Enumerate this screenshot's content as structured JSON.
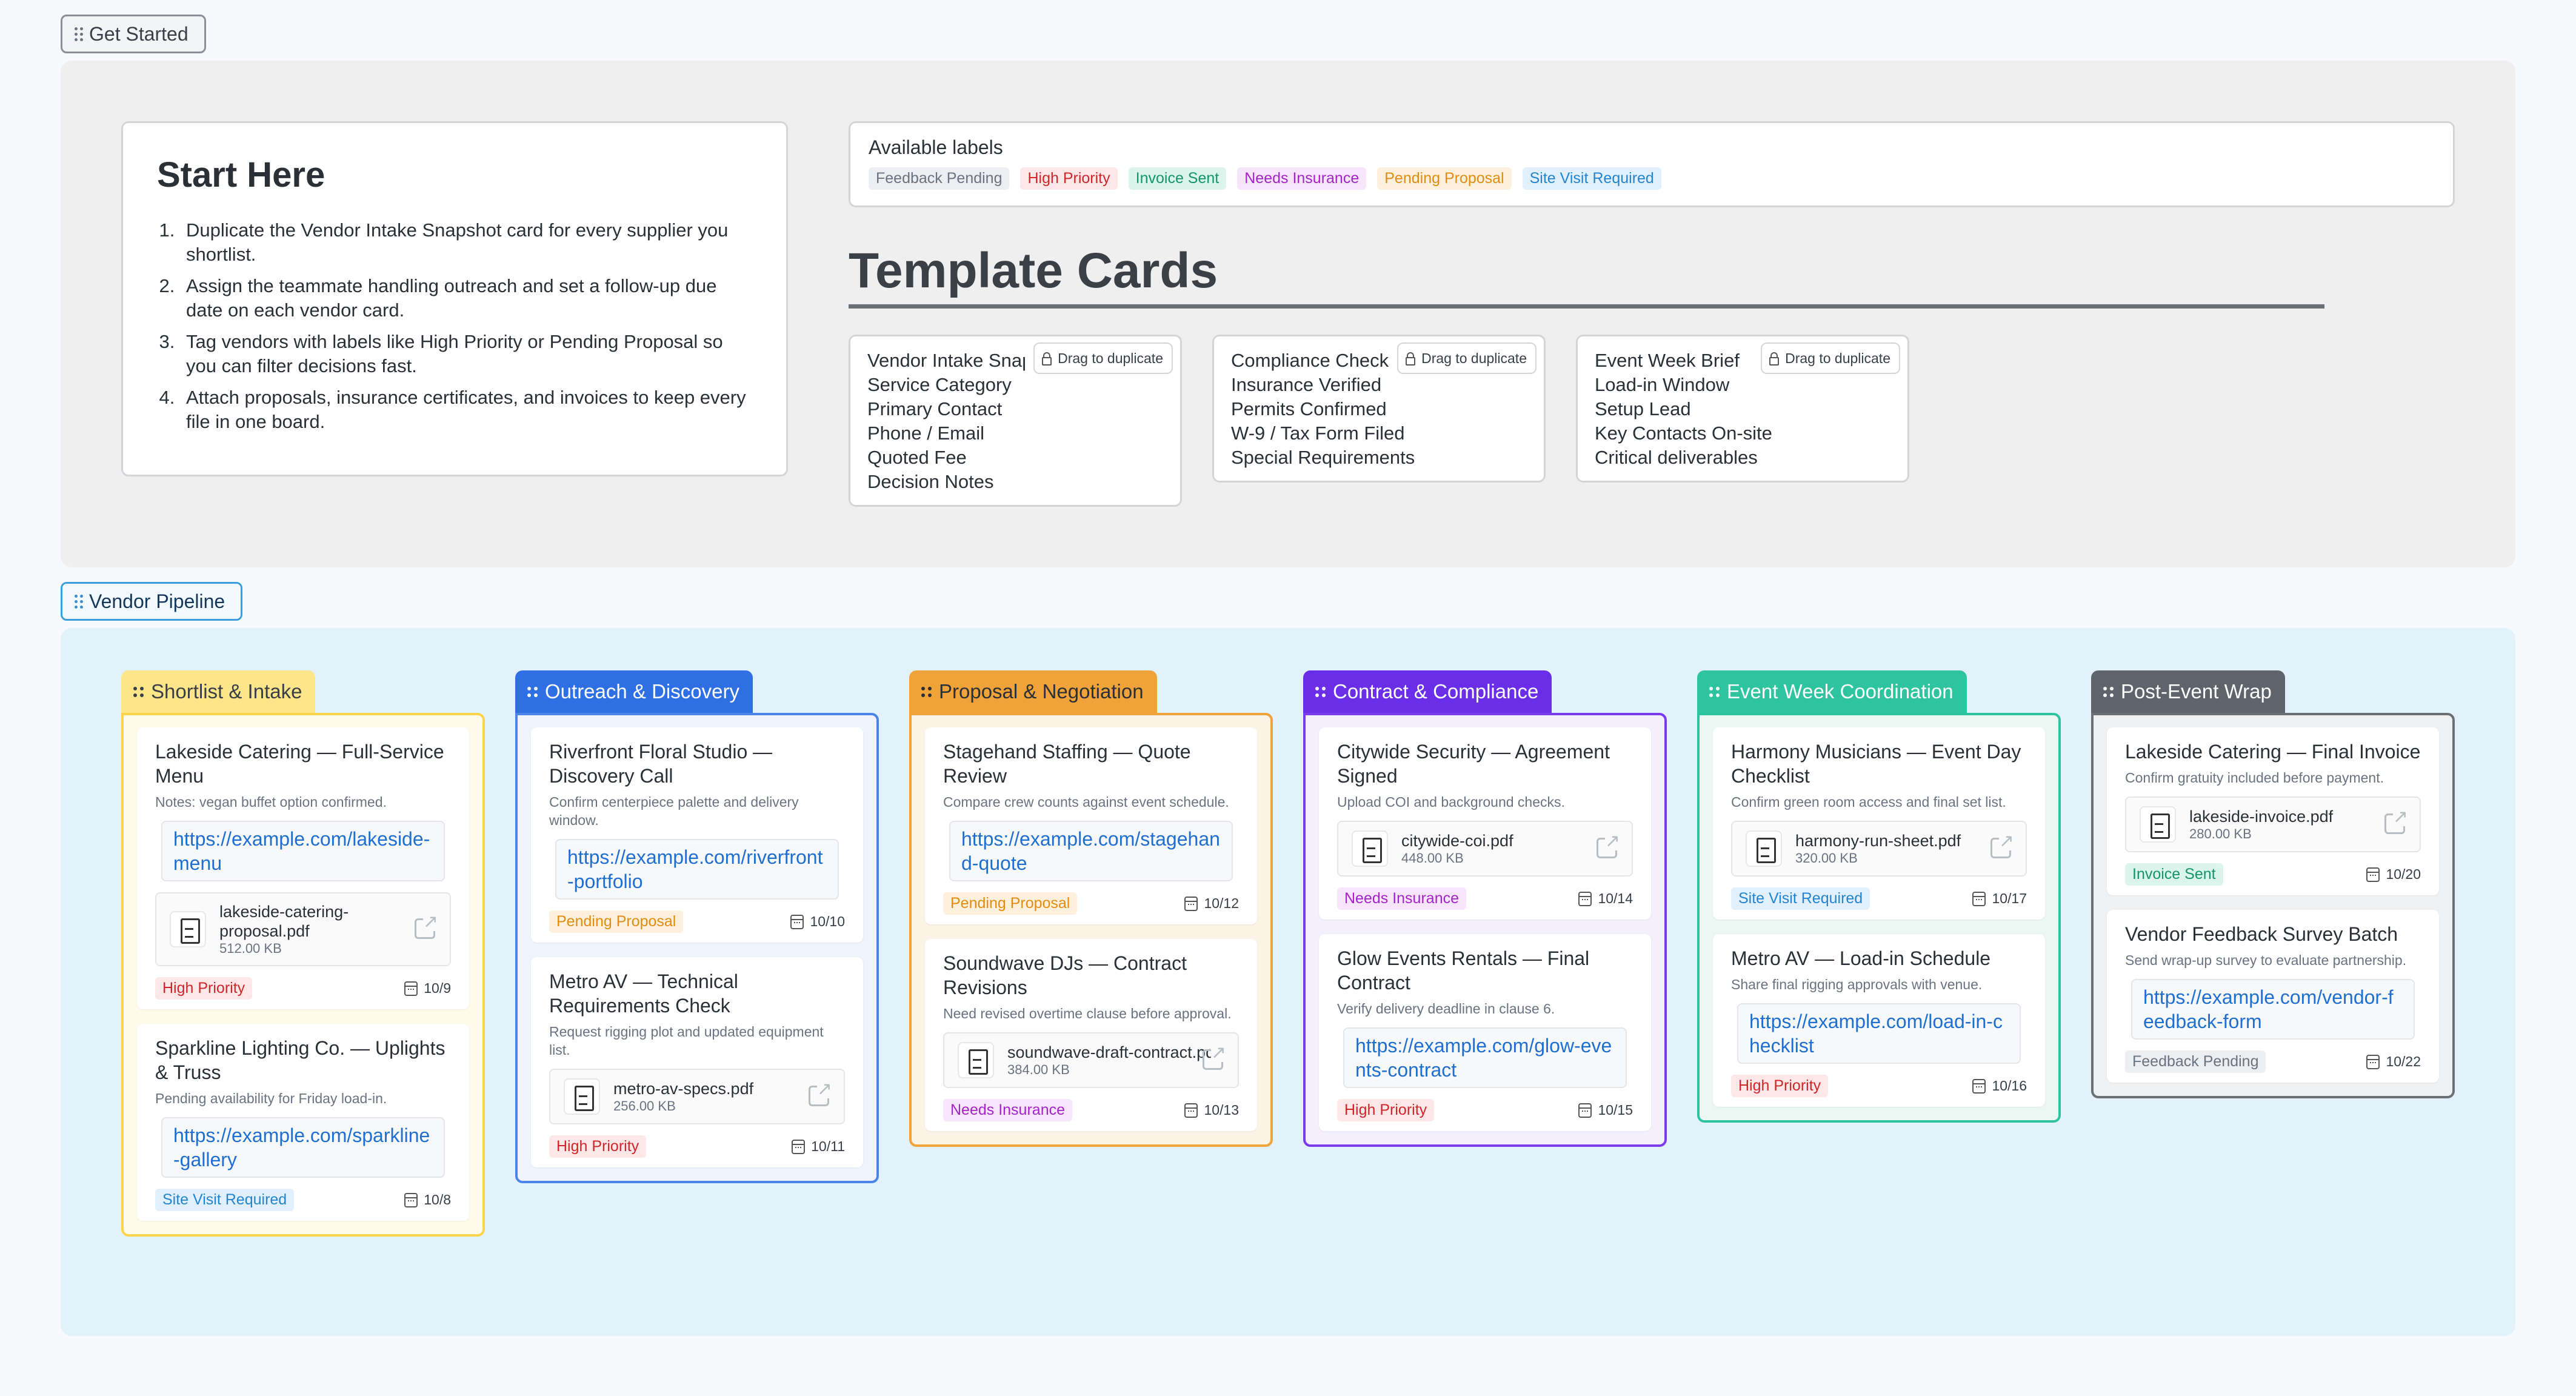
{
  "get_started_tag": "Get Started",
  "vendor_pipeline_tag": "Vendor Pipeline",
  "start_here": {
    "title": "Start Here",
    "steps": [
      "Duplicate the Vendor Intake Snapshot card for every supplier you shortlist.",
      "Assign the teammate handling outreach and set a follow-up due date on each vendor card.",
      "Tag vendors with labels like High Priority or Pending Proposal so you can filter decisions fast.",
      "Attach proposals, insurance certificates, and invoices to keep every file in one board."
    ]
  },
  "labels": {
    "title": "Available labels",
    "items": [
      {
        "text": "Feedback Pending",
        "color": "gray"
      },
      {
        "text": "High Priority",
        "color": "red"
      },
      {
        "text": "Invoice Sent",
        "color": "teal"
      },
      {
        "text": "Needs Insurance",
        "color": "purple"
      },
      {
        "text": "Pending Proposal",
        "color": "orange"
      },
      {
        "text": "Site Visit Required",
        "color": "blue"
      }
    ]
  },
  "template_section": {
    "title": "Template Cards",
    "drag_label": "Drag to duplicate",
    "cards": [
      {
        "name": "Vendor Intake Snapshot",
        "fields": [
          "Service Category",
          "Primary Contact",
          "Phone / Email",
          "Quoted Fee",
          "Decision Notes"
        ]
      },
      {
        "name": "Compliance Checklist",
        "fields": [
          "Insurance Verified",
          "Permits Confirmed",
          "W-9 / Tax Form Filed",
          "Special Requirements"
        ]
      },
      {
        "name": "Event Week Brief",
        "fields": [
          "Load-in Window",
          "Setup Lead",
          "Key Contacts On-site",
          "Critical deliverables"
        ]
      }
    ]
  },
  "columns": [
    {
      "title": "Shortlist & Intake",
      "head_bg": "#fde68a",
      "head_fg": "#3a3f47",
      "border": "#fcd34d",
      "body_bg": "#fffbeb",
      "cards": [
        {
          "title": "Lakeside Catering — Full-Service Menu",
          "note": "Notes: vegan buffet option confirmed.",
          "link": "https://example.com/lakeside-menu",
          "file": {
            "name": "lakeside-catering-proposal.pdf",
            "size": "512.00 KB"
          },
          "label": {
            "text": "High Priority",
            "color": "red"
          },
          "due": "10/9"
        },
        {
          "title": "Sparkline Lighting Co. — Uplights & Truss",
          "note": "Pending availability for Friday load-in.",
          "link": "https://example.com/sparkline-gallery",
          "label": {
            "text": "Site Visit Required",
            "color": "blue"
          },
          "due": "10/8"
        }
      ]
    },
    {
      "title": "Outreach & Discovery",
      "head_bg": "#2f6fe4",
      "head_fg": "#ffffff",
      "border": "#4a84e8",
      "body_bg": "#eef3fc",
      "cards": [
        {
          "title": "Riverfront Floral Studio — Discovery Call",
          "note": "Confirm centerpiece palette and delivery window.",
          "link": "https://example.com/riverfront-portfolio",
          "label": {
            "text": "Pending Proposal",
            "color": "orange"
          },
          "due": "10/10"
        },
        {
          "title": "Metro AV — Technical Requirements Check",
          "note": "Request rigging plot and updated equipment list.",
          "file": {
            "name": "metro-av-specs.pdf",
            "size": "256.00 KB"
          },
          "label": {
            "text": "High Priority",
            "color": "red"
          },
          "due": "10/11"
        }
      ]
    },
    {
      "title": "Proposal & Negotiation",
      "head_bg": "#f0a338",
      "head_fg": "#2b2f36",
      "border": "#f0a338",
      "body_bg": "#fbf3e6",
      "cards": [
        {
          "title": "Stagehand Staffing — Quote Review",
          "note": "Compare crew counts against event schedule.",
          "link": "https://example.com/stagehand-quote",
          "label": {
            "text": "Pending Proposal",
            "color": "orange"
          },
          "due": "10/12"
        },
        {
          "title": "Soundwave DJs — Contract Revisions",
          "note": "Need revised overtime clause before approval.",
          "file": {
            "name": "soundwave-draft-contract.pdf",
            "size": "384.00 KB"
          },
          "label": {
            "text": "Needs Insurance",
            "color": "purple"
          },
          "due": "10/13"
        }
      ]
    },
    {
      "title": "Contract & Compliance",
      "head_bg": "#6a2ee8",
      "head_fg": "#ffffff",
      "border": "#7c3aed",
      "body_bg": "#f3effc",
      "cards": [
        {
          "title": "Citywide Security — Agreement Signed",
          "note": "Upload COI and background checks.",
          "file": {
            "name": "citywide-coi.pdf",
            "size": "448.00 KB"
          },
          "label": {
            "text": "Needs Insurance",
            "color": "purple"
          },
          "due": "10/14"
        },
        {
          "title": "Glow Events Rentals — Final Contract",
          "note": "Verify delivery deadline in clause 6.",
          "link": "https://example.com/glow-events-contract",
          "label": {
            "text": "High Priority",
            "color": "red"
          },
          "due": "10/15"
        }
      ]
    },
    {
      "title": "Event Week Coordination",
      "head_bg": "#2ec4a0",
      "head_fg": "#ffffff",
      "border": "#2ec4a0",
      "body_bg": "#eaf7f3",
      "cards": [
        {
          "title": "Harmony Musicians — Event Day Checklist",
          "note": "Confirm green room access and final set list.",
          "file": {
            "name": "harmony-run-sheet.pdf",
            "size": "320.00 KB"
          },
          "label": {
            "text": "Site Visit Required",
            "color": "blue"
          },
          "due": "10/17"
        },
        {
          "title": "Metro AV — Load-in Schedule",
          "note": "Share final rigging approvals with venue.",
          "link": "https://example.com/load-in-checklist",
          "label": {
            "text": "High Priority",
            "color": "red"
          },
          "due": "10/16"
        }
      ]
    },
    {
      "title": "Post-Event Wrap",
      "head_bg": "#5f636b",
      "head_fg": "#ffffff",
      "border": "#6b6f76",
      "body_bg": "#eef0f2",
      "cards": [
        {
          "title": "Lakeside Catering — Final Invoice",
          "note": "Confirm gratuity included before payment.",
          "file": {
            "name": "lakeside-invoice.pdf",
            "size": "280.00 KB"
          },
          "label": {
            "text": "Invoice Sent",
            "color": "teal"
          },
          "due": "10/20"
        },
        {
          "title": "Vendor Feedback Survey Batch",
          "note": "Send wrap-up survey to evaluate partnership.",
          "link": "https://example.com/vendor-feedback-form",
          "label": {
            "text": "Feedback Pending",
            "color": "gray"
          },
          "due": "10/22"
        }
      ]
    }
  ]
}
